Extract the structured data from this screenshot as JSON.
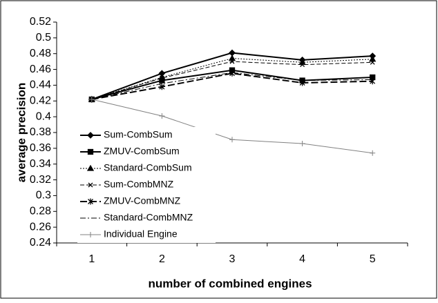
{
  "chart_data": {
    "type": "line",
    "x_label": "number of combined engines",
    "y_label": "average precision",
    "categories": [
      "1",
      "2",
      "3",
      "4",
      "5"
    ],
    "ylim": [
      0.24,
      0.52
    ],
    "yticks": [
      0.24,
      0.26,
      0.28,
      0.3,
      0.32,
      0.34,
      0.36,
      0.38,
      0.4,
      0.42,
      0.44,
      0.46,
      0.48,
      0.5,
      0.52
    ],
    "legend": "left",
    "series": [
      {
        "name": "Sum-CombSum",
        "color": "#000000",
        "dash": "none",
        "marker": "diamond",
        "width": 2,
        "values": [
          0.422,
          0.455,
          0.481,
          0.472,
          0.477
        ]
      },
      {
        "name": "ZMUV-CombSum",
        "color": "#000000",
        "dash": "none",
        "marker": "square",
        "width": 2,
        "values": [
          0.422,
          0.446,
          0.459,
          0.446,
          0.45
        ]
      },
      {
        "name": "Standard-CombSum",
        "color": "#000000",
        "dash": "2 2",
        "marker": "triangle",
        "width": 1,
        "values": [
          0.422,
          0.45,
          0.474,
          0.469,
          0.473
        ]
      },
      {
        "name": "Sum-CombMNZ",
        "color": "#000000",
        "dash": "6 3",
        "marker": "x",
        "width": 1,
        "values": [
          0.422,
          0.449,
          0.47,
          0.466,
          0.469
        ]
      },
      {
        "name": "ZMUV-CombMNZ",
        "color": "#000000",
        "dash": "10 4",
        "marker": "star",
        "width": 2,
        "values": [
          0.422,
          0.438,
          0.455,
          0.443,
          0.445
        ]
      },
      {
        "name": "Standard-CombMNZ",
        "color": "#000000",
        "dash": "8 3 2 3",
        "marker": "none",
        "width": 1,
        "values": [
          0.422,
          0.442,
          0.456,
          0.446,
          0.447
        ]
      },
      {
        "name": "Individual Engine",
        "color": "#808080",
        "dash": "none",
        "marker": "plus",
        "width": 1,
        "values": [
          0.422,
          0.401,
          0.371,
          0.366,
          0.354
        ]
      }
    ]
  }
}
